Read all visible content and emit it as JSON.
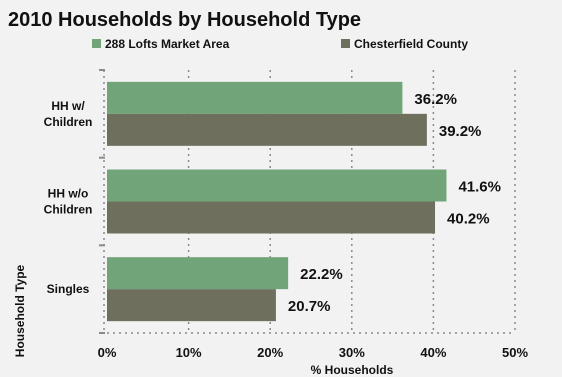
{
  "chart_data": {
    "type": "bar",
    "orientation": "horizontal",
    "title": "2010 Households by Household Type",
    "categories": [
      "HH w/ Children",
      "HH w/o Children",
      "Singles"
    ],
    "category_lines": [
      [
        "HH w/",
        "Children"
      ],
      [
        "HH w/o",
        "Children"
      ],
      [
        "Singles"
      ]
    ],
    "series": [
      {
        "name": "288 Lofts Market Area",
        "color": "#71a579",
        "values": [
          36.2,
          41.6,
          22.2
        ],
        "labels": [
          "36.2%",
          "41.6%",
          "22.2%"
        ]
      },
      {
        "name": "Chesterfield County",
        "color": "#6e6f5c",
        "values": [
          39.2,
          40.2,
          20.7
        ],
        "labels": [
          "39.2%",
          "40.2%",
          "20.7%"
        ]
      }
    ],
    "xlabel": "% Households",
    "ylabel": "Household Type",
    "xlim": [
      0,
      50
    ],
    "xticks": [
      0,
      10,
      20,
      30,
      40,
      50
    ],
    "xtick_labels": [
      "0%",
      "10%",
      "20%",
      "30%",
      "40%",
      "50%"
    ],
    "grid": true,
    "legend_position": "top"
  }
}
